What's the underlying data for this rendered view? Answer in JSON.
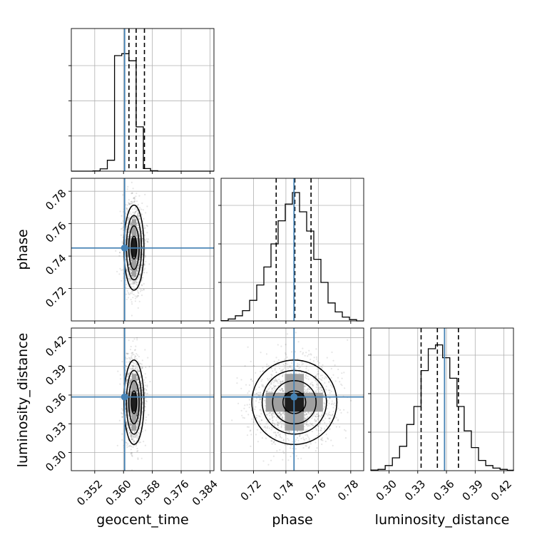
{
  "chart_data": {
    "type": "corner",
    "parameters": [
      "geocent_time",
      "phase",
      "luminosity_distance"
    ],
    "truth": {
      "geocent_time": 0.3603,
      "phase": 0.745,
      "luminosity_distance": 0.358
    },
    "truth_color": "#4682b4",
    "axis_labels": {
      "geocent_time": "geocent_time",
      "phase": "phase",
      "luminosity_distance": "luminosity_distance"
    },
    "ranges": {
      "geocent_time": [
        0.3455,
        0.3851
      ],
      "phase": [
        0.7,
        0.788
      ],
      "luminosity_distance": [
        0.281,
        0.43
      ]
    },
    "ticks": {
      "geocent_time": [
        0.352,
        0.36,
        0.368,
        0.376,
        0.384
      ],
      "phase": [
        0.72,
        0.74,
        0.76,
        0.78
      ],
      "luminosity_distance": [
        0.3,
        0.33,
        0.36,
        0.39,
        0.42
      ]
    },
    "tick_labels": {
      "geocent_time": [
        "0.352",
        "0.360",
        "0.368",
        "0.376",
        "0.384"
      ],
      "phase": [
        "0.72",
        "0.74",
        "0.76",
        "0.78"
      ],
      "luminosity_distance": [
        "0.30",
        "0.33",
        "0.36",
        "0.39",
        "0.42"
      ]
    },
    "histograms": {
      "geocent_time": {
        "edges": [
          0.3455,
          0.3475,
          0.3495,
          0.3515,
          0.3535,
          0.3555,
          0.3575,
          0.3595,
          0.3615,
          0.3635,
          0.3655,
          0.3675,
          0.3695,
          0.3715,
          0.3735,
          0.3755,
          0.3775,
          0.3795,
          0.3815,
          0.3835,
          0.3851
        ],
        "counts": [
          0,
          0,
          0,
          0.002,
          0.018,
          0.085,
          0.9,
          0.915,
          0.86,
          0.345,
          0.02,
          0.003,
          0,
          0,
          0,
          0,
          0,
          0,
          0,
          0
        ],
        "quantiles": [
          0.3615,
          0.3635,
          0.3658
        ]
      },
      "phase": {
        "edges": [
          0.7,
          0.7044,
          0.7088,
          0.7132,
          0.7176,
          0.722,
          0.7264,
          0.7308,
          0.7352,
          0.7396,
          0.744,
          0.7484,
          0.7528,
          0.7572,
          0.7616,
          0.766,
          0.7704,
          0.7748,
          0.7792,
          0.7836,
          0.788
        ],
        "counts": [
          0.002,
          0.015,
          0.04,
          0.08,
          0.16,
          0.28,
          0.42,
          0.6,
          0.78,
          0.91,
          1.0,
          0.85,
          0.7,
          0.48,
          0.3,
          0.14,
          0.07,
          0.03,
          0.01,
          0
        ],
        "quantiles": [
          0.734,
          0.7455,
          0.7555
        ]
      },
      "luminosity_distance": {
        "edges": [
          0.281,
          0.2885,
          0.296,
          0.3035,
          0.311,
          0.3185,
          0.326,
          0.3335,
          0.341,
          0.3485,
          0.356,
          0.3635,
          0.371,
          0.3785,
          0.386,
          0.3935,
          0.401,
          0.4085,
          0.416,
          0.4235,
          0.43
        ],
        "counts": [
          0.005,
          0.01,
          0.04,
          0.1,
          0.19,
          0.36,
          0.5,
          0.78,
          0.95,
          0.98,
          0.88,
          0.72,
          0.5,
          0.31,
          0.18,
          0.08,
          0.04,
          0.02,
          0.01,
          0.003
        ],
        "quantiles": [
          0.3335,
          0.3505,
          0.3725
        ]
      }
    },
    "joint": [
      {
        "x": "geocent_time",
        "y": "phase",
        "center": [
          0.3629,
          0.7452
        ],
        "sigma": [
          0.00135,
          0.0128
        ]
      },
      {
        "x": "geocent_time",
        "y": "luminosity_distance",
        "center": [
          0.3629,
          0.3525
        ],
        "sigma": [
          0.00135,
          0.0215
        ]
      },
      {
        "x": "phase",
        "y": "luminosity_distance",
        "center": [
          0.7452,
          0.3525
        ],
        "sigma": [
          0.0128,
          0.0215
        ]
      }
    ]
  }
}
